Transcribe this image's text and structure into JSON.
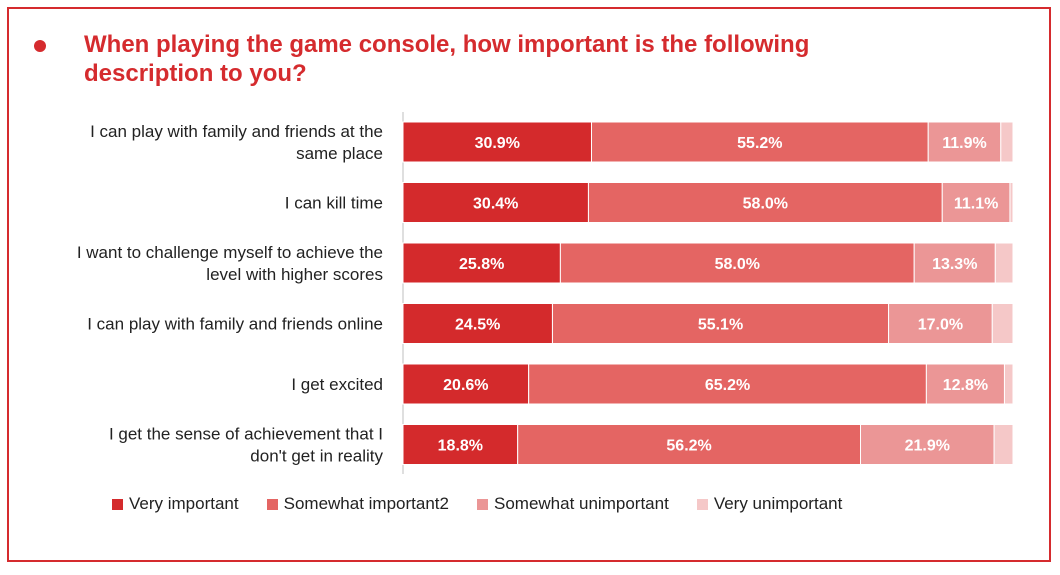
{
  "title": "When playing the game console, how important is the following description to you?",
  "colors": {
    "accent": "#d52b2e",
    "series": [
      "#d42a2c",
      "#e46563",
      "#eb9696",
      "#f5c8c8"
    ]
  },
  "chart_data": {
    "type": "bar",
    "orientation": "horizontal",
    "stacked": true,
    "categories": [
      [
        "I can play with family and friends at the",
        "same place"
      ],
      [
        "I can kill time"
      ],
      [
        "I want to challenge myself to achieve the",
        "level with higher scores"
      ],
      [
        "I can play with family and friends online"
      ],
      [
        "I get excited"
      ],
      [
        "I get the sense of achievement that I",
        "don't get in reality"
      ]
    ],
    "series": [
      {
        "name": "Very important",
        "values": [
          30.9,
          30.4,
          25.8,
          24.5,
          20.6,
          18.8
        ],
        "labels": [
          "30.9%",
          "30.4%",
          "25.8%",
          "24.5%",
          "20.6%",
          "18.8%"
        ]
      },
      {
        "name": "Somewhat important2",
        "values": [
          55.2,
          58.0,
          58.0,
          55.1,
          65.2,
          56.2
        ],
        "labels": [
          "55.2%",
          "58.0%",
          "58.0%",
          "55.1%",
          "65.2%",
          "56.2%"
        ]
      },
      {
        "name": "Somewhat unimportant",
        "values": [
          11.9,
          11.1,
          13.3,
          17.0,
          12.8,
          21.9
        ],
        "labels": [
          "11.9%",
          "11.1%",
          "13.3%",
          "17.0%",
          "12.8%",
          "21.9%"
        ]
      },
      {
        "name": "Very unimportant",
        "values": [
          2.0,
          0.5,
          2.9,
          3.4,
          1.4,
          3.1
        ],
        "labels": [
          "",
          "",
          "",
          "",
          "",
          ""
        ]
      }
    ],
    "xlim": [
      0,
      100
    ],
    "legend_position": "bottom",
    "grid": false
  }
}
